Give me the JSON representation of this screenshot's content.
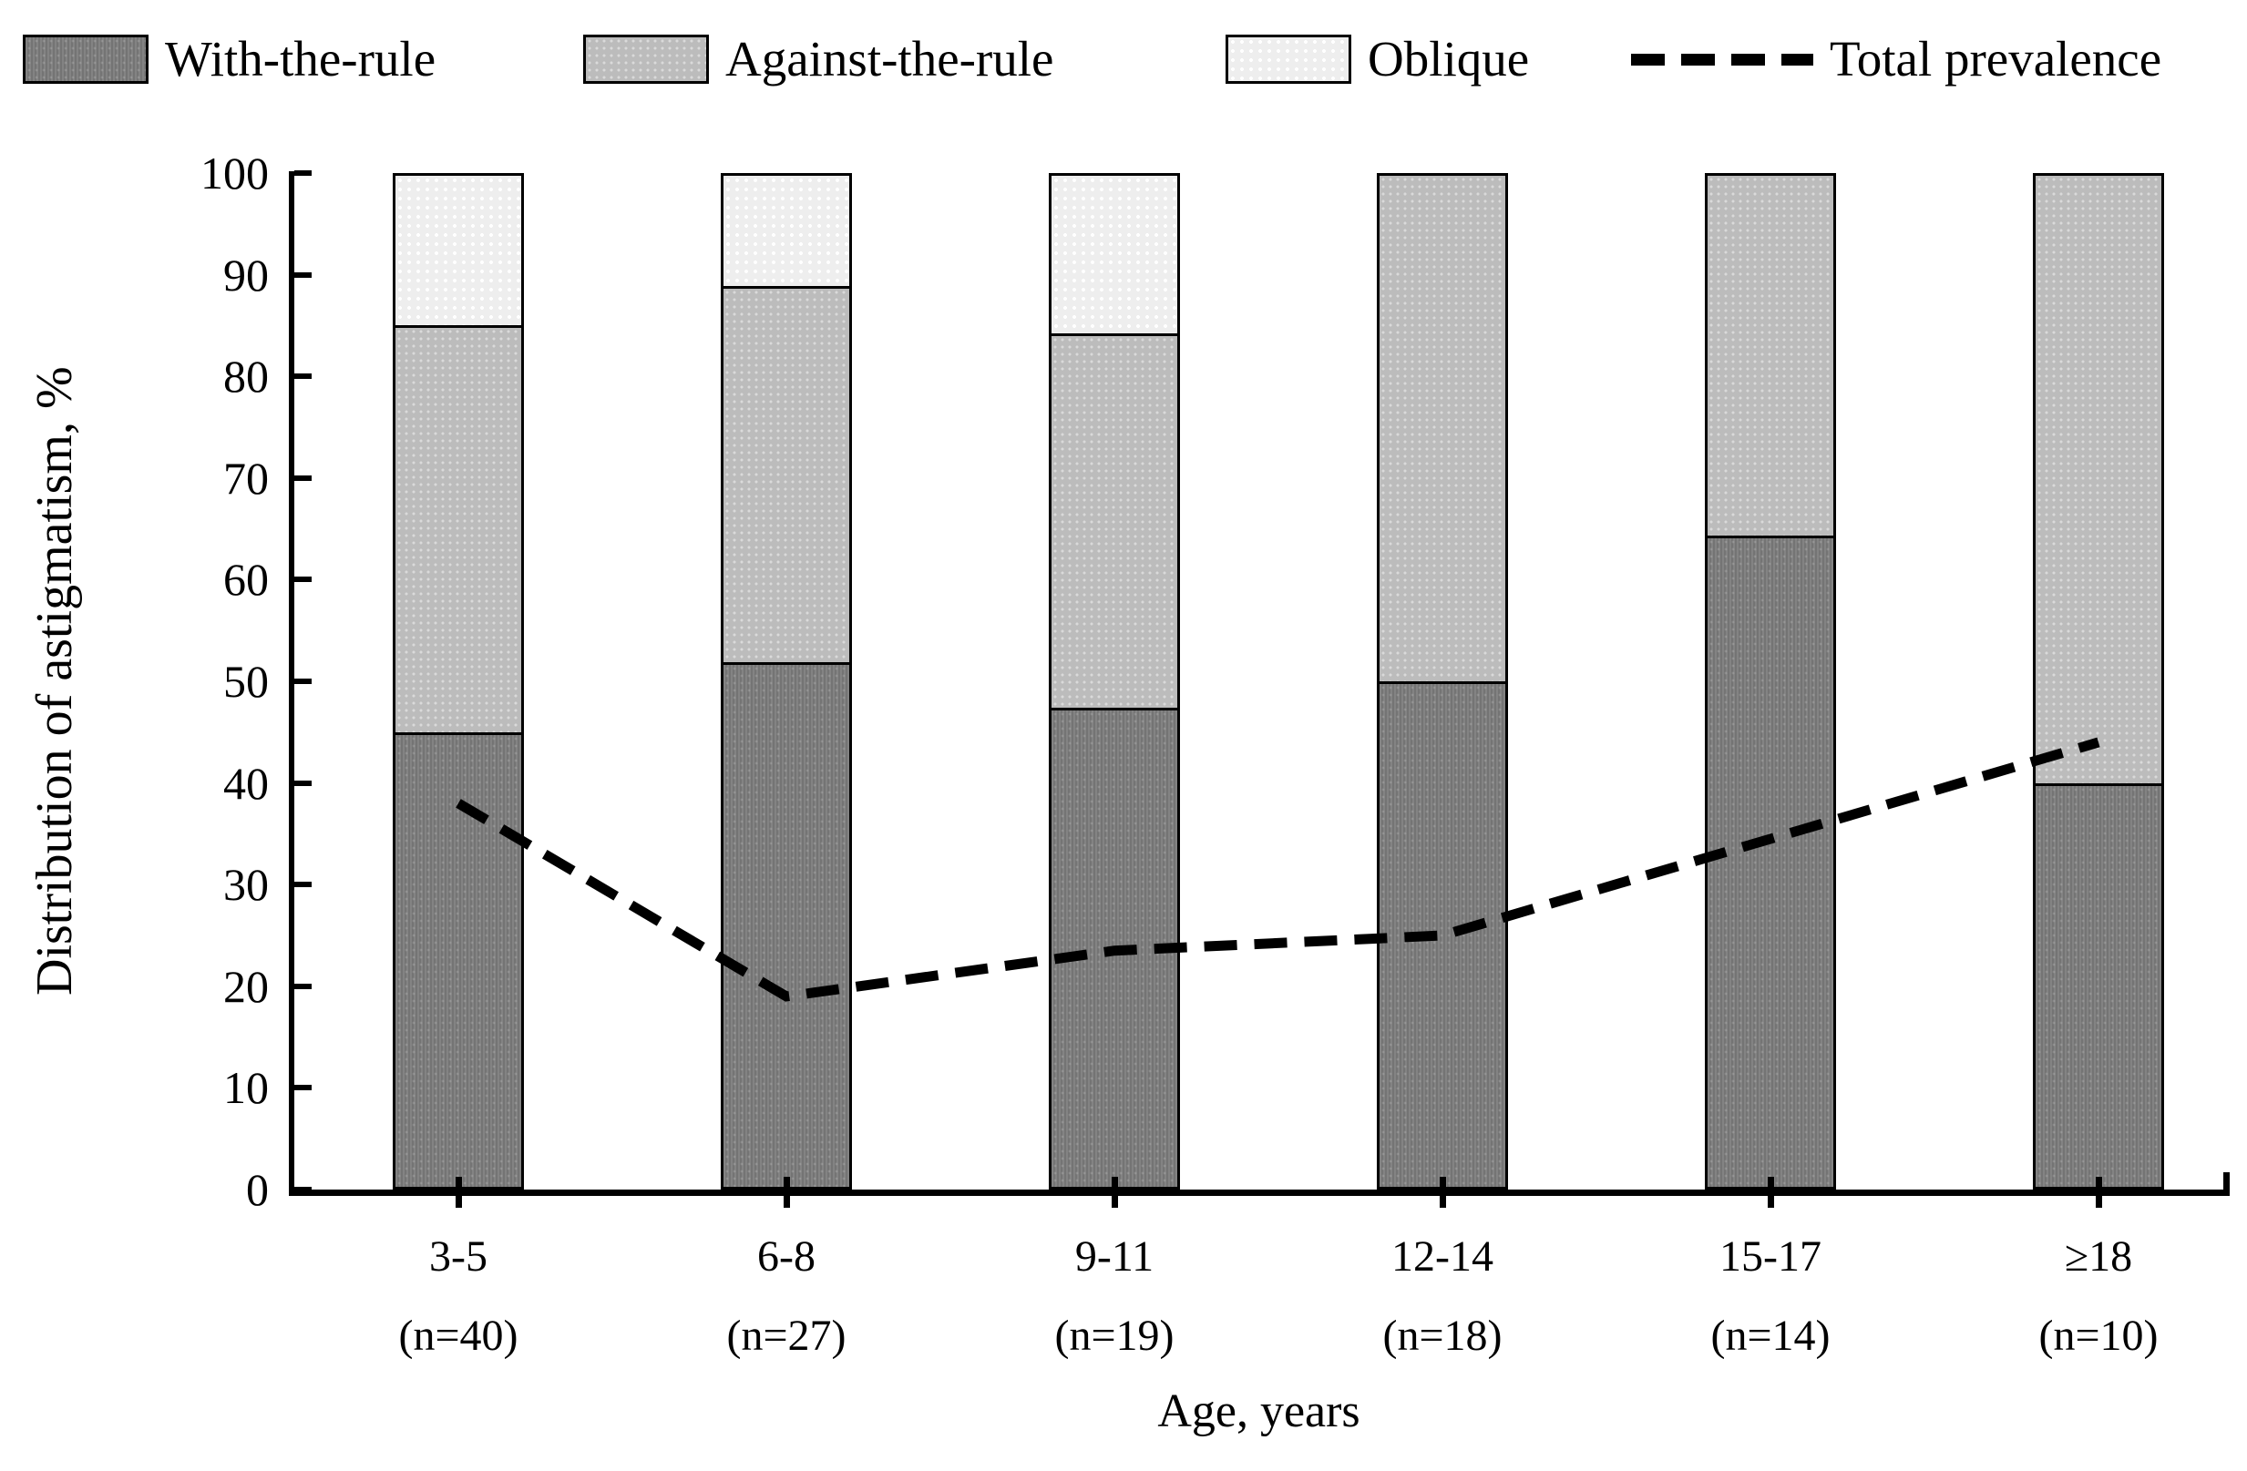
{
  "chart_data": {
    "type": "bar",
    "subtype": "stacked-bar-with-line-overlay",
    "title": "",
    "xlabel": "Age, years",
    "ylabel": "Distribution of astigmatism, %",
    "ylim": [
      0,
      100
    ],
    "ytick_step": 10,
    "yticklabels": [
      "0",
      "10",
      "20",
      "30",
      "40",
      "50",
      "60",
      "70",
      "80",
      "90",
      "100"
    ],
    "grid": false,
    "legend_position": "top",
    "categories": [
      "3-5",
      "6-8",
      "9-11",
      "12-14",
      "15-17",
      "≥18"
    ],
    "category_sublabels": [
      "(n=40)",
      "(n=27)",
      "(n=19)",
      "(n=18)",
      "(n=14)",
      "(n=10)"
    ],
    "series": [
      {
        "name": "With-the-rule",
        "type": "bar",
        "stack_order": 1,
        "values": [
          45.0,
          51.9,
          47.4,
          50.0,
          64.3,
          40.0
        ]
      },
      {
        "name": "Against-the-rule",
        "type": "bar",
        "stack_order": 2,
        "values": [
          40.0,
          37.0,
          36.8,
          50.0,
          35.7,
          60.0
        ]
      },
      {
        "name": "Oblique",
        "type": "bar",
        "stack_order": 3,
        "values": [
          15.0,
          11.1,
          15.8,
          0.0,
          0.0,
          0.0
        ]
      },
      {
        "name": "Total prevalence",
        "type": "line",
        "dashed": true,
        "values": [
          38.0,
          19.0,
          23.5,
          25.0,
          34.5,
          44.0
        ]
      }
    ],
    "colors": {
      "with_the_rule": "#7b7b7b",
      "against_the_rule": "#bcbcbc",
      "oblique": "#eeeeee",
      "line": "#000000",
      "axis": "#000000",
      "background": "#ffffff"
    }
  }
}
